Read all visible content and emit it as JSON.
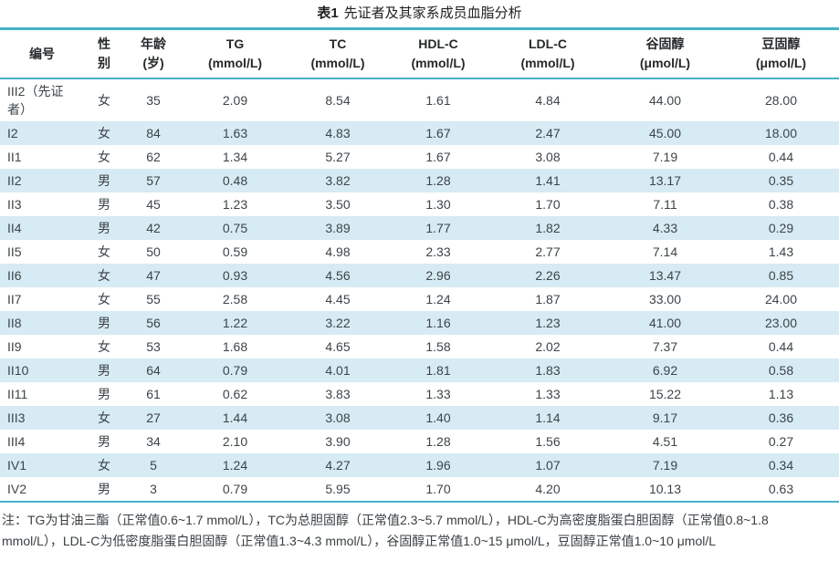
{
  "title": {
    "label": "表1",
    "text": "先证者及其家系成员血脂分析"
  },
  "colors": {
    "border_teal": "#44b2c6",
    "row_stripe_blue": "#d6ebf3",
    "text_dark": "#3d4449"
  },
  "table": {
    "columns": [
      {
        "key": "id",
        "line1": "编号",
        "line2": ""
      },
      {
        "key": "sex",
        "line1": "性",
        "line2": "别"
      },
      {
        "key": "age",
        "line1": "年龄",
        "line2": "(岁)"
      },
      {
        "key": "tg",
        "line1": "TG",
        "line2": "(mmol/L)"
      },
      {
        "key": "tc",
        "line1": "TC",
        "line2": "(mmol/L)"
      },
      {
        "key": "hdlc",
        "line1": "HDL-C",
        "line2": "(mmol/L)"
      },
      {
        "key": "ldlc",
        "line1": "LDL-C",
        "line2": "(mmol/L)"
      },
      {
        "key": "sitosterol",
        "line1": "谷固醇",
        "line2": "(μmol/L)"
      },
      {
        "key": "campesterol",
        "line1": "豆固醇",
        "line2": "(μmol/L)"
      }
    ],
    "rows": [
      {
        "cells": [
          "III2（先证者）",
          "女",
          "35",
          "2.09",
          "8.54",
          "1.61",
          "4.84",
          "44.00",
          "28.00"
        ],
        "striped": false
      },
      {
        "cells": [
          "I2",
          "女",
          "84",
          "1.63",
          "4.83",
          "1.67",
          "2.47",
          "45.00",
          "18.00"
        ],
        "striped": true
      },
      {
        "cells": [
          "II1",
          "女",
          "62",
          "1.34",
          "5.27",
          "1.67",
          "3.08",
          "7.19",
          "0.44"
        ],
        "striped": false
      },
      {
        "cells": [
          "II2",
          "男",
          "57",
          "0.48",
          "3.82",
          "1.28",
          "1.41",
          "13.17",
          "0.35"
        ],
        "striped": true
      },
      {
        "cells": [
          "II3",
          "男",
          "45",
          "1.23",
          "3.50",
          "1.30",
          "1.70",
          "7.11",
          "0.38"
        ],
        "striped": false
      },
      {
        "cells": [
          "II4",
          "男",
          "42",
          "0.75",
          "3.89",
          "1.77",
          "1.82",
          "4.33",
          "0.29"
        ],
        "striped": true
      },
      {
        "cells": [
          "II5",
          "女",
          "50",
          "0.59",
          "4.98",
          "2.33",
          "2.77",
          "7.14",
          "1.43"
        ],
        "striped": false
      },
      {
        "cells": [
          "II6",
          "女",
          "47",
          "0.93",
          "4.56",
          "2.96",
          "2.26",
          "13.47",
          "0.85"
        ],
        "striped": true
      },
      {
        "cells": [
          "II7",
          "女",
          "55",
          "2.58",
          "4.45",
          "1.24",
          "1.87",
          "33.00",
          "24.00"
        ],
        "striped": false
      },
      {
        "cells": [
          "II8",
          "男",
          "56",
          "1.22",
          "3.22",
          "1.16",
          "1.23",
          "41.00",
          "23.00"
        ],
        "striped": true
      },
      {
        "cells": [
          "II9",
          "女",
          "53",
          "1.68",
          "4.65",
          "1.58",
          "2.02",
          "7.37",
          "0.44"
        ],
        "striped": false
      },
      {
        "cells": [
          "II10",
          "男",
          "64",
          "0.79",
          "4.01",
          "1.81",
          "1.83",
          "6.92",
          "0.58"
        ],
        "striped": true
      },
      {
        "cells": [
          "II11",
          "男",
          "61",
          "0.62",
          "3.83",
          "1.33",
          "1.33",
          "15.22",
          "1.13"
        ],
        "striped": false
      },
      {
        "cells": [
          "III3",
          "女",
          "27",
          "1.44",
          "3.08",
          "1.40",
          "1.14",
          "9.17",
          "0.36"
        ],
        "striped": true
      },
      {
        "cells": [
          "III4",
          "男",
          "34",
          "2.10",
          "3.90",
          "1.28",
          "1.56",
          "4.51",
          "0.27"
        ],
        "striped": false
      },
      {
        "cells": [
          "IV1",
          "女",
          "5",
          "1.24",
          "4.27",
          "1.96",
          "1.07",
          "7.19",
          "0.34"
        ],
        "striped": true
      },
      {
        "cells": [
          "IV2",
          "男",
          "3",
          "0.79",
          "5.95",
          "1.70",
          "4.20",
          "10.13",
          "0.63"
        ],
        "striped": false
      }
    ]
  },
  "note": {
    "lines": [
      "注：TG为甘油三酯（正常值0.6~1.7 mmol/L），TC为总胆固醇（正常值2.3~5.7 mmol/L），HDL-C为高密度脂蛋白胆固醇（正常值0.8~1.8",
      "mmol/L），LDL-C为低密度脂蛋白胆固醇（正常值1.3~4.3 mmol/L），谷固醇正常值1.0~15 μmol/L，豆固醇正常值1.0~10 μmol/L"
    ]
  }
}
